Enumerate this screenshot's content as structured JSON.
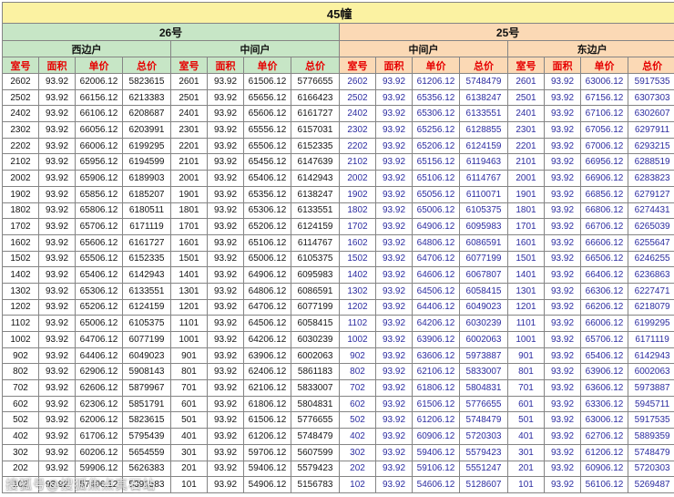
{
  "title": "45幢",
  "watermark": "搜狐号@搜狐焦点真石站",
  "columns": [
    "室号",
    "面积",
    "单价",
    "总价"
  ],
  "blocks": [
    {
      "label": "26号",
      "units": [
        "西边户",
        "中间户"
      ]
    },
    {
      "label": "25号",
      "units": [
        "中间户",
        "东边户"
      ]
    }
  ],
  "colors": {
    "title_bg": "#FBF2A2",
    "block26_bg": "#C7E6C6",
    "block25_bg": "#FBD9B5",
    "column_header_text": "#E60000",
    "block26_data_text": "#151515",
    "block25_data_text": "#2C2CA0",
    "grid_border": "#858585"
  },
  "rows": [
    [
      "2602",
      "93.92",
      "62006.12",
      "5823615",
      "2601",
      "93.92",
      "61506.12",
      "5776655",
      "2602",
      "93.92",
      "61206.12",
      "5748479",
      "2601",
      "93.92",
      "63006.12",
      "5917535"
    ],
    [
      "2502",
      "93.92",
      "66156.12",
      "6213383",
      "2501",
      "93.92",
      "65656.12",
      "6166423",
      "2502",
      "93.92",
      "65356.12",
      "6138247",
      "2501",
      "93.92",
      "67156.12",
      "6307303"
    ],
    [
      "2402",
      "93.92",
      "66106.12",
      "6208687",
      "2401",
      "93.92",
      "65606.12",
      "6161727",
      "2402",
      "93.92",
      "65306.12",
      "6133551",
      "2401",
      "93.92",
      "67106.12",
      "6302607"
    ],
    [
      "2302",
      "93.92",
      "66056.12",
      "6203991",
      "2301",
      "93.92",
      "65556.12",
      "6157031",
      "2302",
      "93.92",
      "65256.12",
      "6128855",
      "2301",
      "93.92",
      "67056.12",
      "6297911"
    ],
    [
      "2202",
      "93.92",
      "66006.12",
      "6199295",
      "2201",
      "93.92",
      "65506.12",
      "6152335",
      "2202",
      "93.92",
      "65206.12",
      "6124159",
      "2201",
      "93.92",
      "67006.12",
      "6293215"
    ],
    [
      "2102",
      "93.92",
      "65956.12",
      "6194599",
      "2101",
      "93.92",
      "65456.12",
      "6147639",
      "2102",
      "93.92",
      "65156.12",
      "6119463",
      "2101",
      "93.92",
      "66956.12",
      "6288519"
    ],
    [
      "2002",
      "93.92",
      "65906.12",
      "6189903",
      "2001",
      "93.92",
      "65406.12",
      "6142943",
      "2002",
      "93.92",
      "65106.12",
      "6114767",
      "2001",
      "93.92",
      "66906.12",
      "6283823"
    ],
    [
      "1902",
      "93.92",
      "65856.12",
      "6185207",
      "1901",
      "93.92",
      "65356.12",
      "6138247",
      "1902",
      "93.92",
      "65056.12",
      "6110071",
      "1901",
      "93.92",
      "66856.12",
      "6279127"
    ],
    [
      "1802",
      "93.92",
      "65806.12",
      "6180511",
      "1801",
      "93.92",
      "65306.12",
      "6133551",
      "1802",
      "93.92",
      "65006.12",
      "6105375",
      "1801",
      "93.92",
      "66806.12",
      "6274431"
    ],
    [
      "1702",
      "93.92",
      "65706.12",
      "6171119",
      "1701",
      "93.92",
      "65206.12",
      "6124159",
      "1702",
      "93.92",
      "64906.12",
      "6095983",
      "1701",
      "93.92",
      "66706.12",
      "6265039"
    ],
    [
      "1602",
      "93.92",
      "65606.12",
      "6161727",
      "1601",
      "93.92",
      "65106.12",
      "6114767",
      "1602",
      "93.92",
      "64806.12",
      "6086591",
      "1601",
      "93.92",
      "66606.12",
      "6255647"
    ],
    [
      "1502",
      "93.92",
      "65506.12",
      "6152335",
      "1501",
      "93.92",
      "65006.12",
      "6105375",
      "1502",
      "93.92",
      "64706.12",
      "6077199",
      "1501",
      "93.92",
      "66506.12",
      "6246255"
    ],
    [
      "1402",
      "93.92",
      "65406.12",
      "6142943",
      "1401",
      "93.92",
      "64906.12",
      "6095983",
      "1402",
      "93.92",
      "64606.12",
      "6067807",
      "1401",
      "93.92",
      "66406.12",
      "6236863"
    ],
    [
      "1302",
      "93.92",
      "65306.12",
      "6133551",
      "1301",
      "93.92",
      "64806.12",
      "6086591",
      "1302",
      "93.92",
      "64506.12",
      "6058415",
      "1301",
      "93.92",
      "66306.12",
      "6227471"
    ],
    [
      "1202",
      "93.92",
      "65206.12",
      "6124159",
      "1201",
      "93.92",
      "64706.12",
      "6077199",
      "1202",
      "93.92",
      "64406.12",
      "6049023",
      "1201",
      "93.92",
      "66206.12",
      "6218079"
    ],
    [
      "1102",
      "93.92",
      "65006.12",
      "6105375",
      "1101",
      "93.92",
      "64506.12",
      "6058415",
      "1102",
      "93.92",
      "64206.12",
      "6030239",
      "1101",
      "93.92",
      "66006.12",
      "6199295"
    ],
    [
      "1002",
      "93.92",
      "64706.12",
      "6077199",
      "1001",
      "93.92",
      "64206.12",
      "6030239",
      "1002",
      "93.92",
      "63906.12",
      "6002063",
      "1001",
      "93.92",
      "65706.12",
      "6171119"
    ],
    [
      "902",
      "93.92",
      "64406.12",
      "6049023",
      "901",
      "93.92",
      "63906.12",
      "6002063",
      "902",
      "93.92",
      "63606.12",
      "5973887",
      "901",
      "93.92",
      "65406.12",
      "6142943"
    ],
    [
      "802",
      "93.92",
      "62906.12",
      "5908143",
      "801",
      "93.92",
      "62406.12",
      "5861183",
      "802",
      "93.92",
      "62106.12",
      "5833007",
      "801",
      "93.92",
      "63906.12",
      "6002063"
    ],
    [
      "702",
      "93.92",
      "62606.12",
      "5879967",
      "701",
      "93.92",
      "62106.12",
      "5833007",
      "702",
      "93.92",
      "61806.12",
      "5804831",
      "701",
      "93.92",
      "63606.12",
      "5973887"
    ],
    [
      "602",
      "93.92",
      "62306.12",
      "5851791",
      "601",
      "93.92",
      "61806.12",
      "5804831",
      "602",
      "93.92",
      "61506.12",
      "5776655",
      "601",
      "93.92",
      "63306.12",
      "5945711"
    ],
    [
      "502",
      "93.92",
      "62006.12",
      "5823615",
      "501",
      "93.92",
      "61506.12",
      "5776655",
      "502",
      "93.92",
      "61206.12",
      "5748479",
      "501",
      "93.92",
      "63006.12",
      "5917535"
    ],
    [
      "402",
      "93.92",
      "61706.12",
      "5795439",
      "401",
      "93.92",
      "61206.12",
      "5748479",
      "402",
      "93.92",
      "60906.12",
      "5720303",
      "401",
      "93.92",
      "62706.12",
      "5889359"
    ],
    [
      "302",
      "93.92",
      "60206.12",
      "5654559",
      "301",
      "93.92",
      "59706.12",
      "5607599",
      "302",
      "93.92",
      "59406.12",
      "5579423",
      "301",
      "93.92",
      "61206.12",
      "5748479"
    ],
    [
      "202",
      "93.92",
      "59906.12",
      "5626383",
      "201",
      "93.92",
      "59406.12",
      "5579423",
      "202",
      "93.92",
      "59106.12",
      "5551247",
      "201",
      "93.92",
      "60906.12",
      "5720303"
    ],
    [
      "102",
      "93.92",
      "57406.12",
      "5391583",
      "101",
      "93.92",
      "54906.12",
      "5156783",
      "102",
      "93.92",
      "54606.12",
      "5128607",
      "101",
      "93.92",
      "56106.12",
      "5269487"
    ]
  ]
}
